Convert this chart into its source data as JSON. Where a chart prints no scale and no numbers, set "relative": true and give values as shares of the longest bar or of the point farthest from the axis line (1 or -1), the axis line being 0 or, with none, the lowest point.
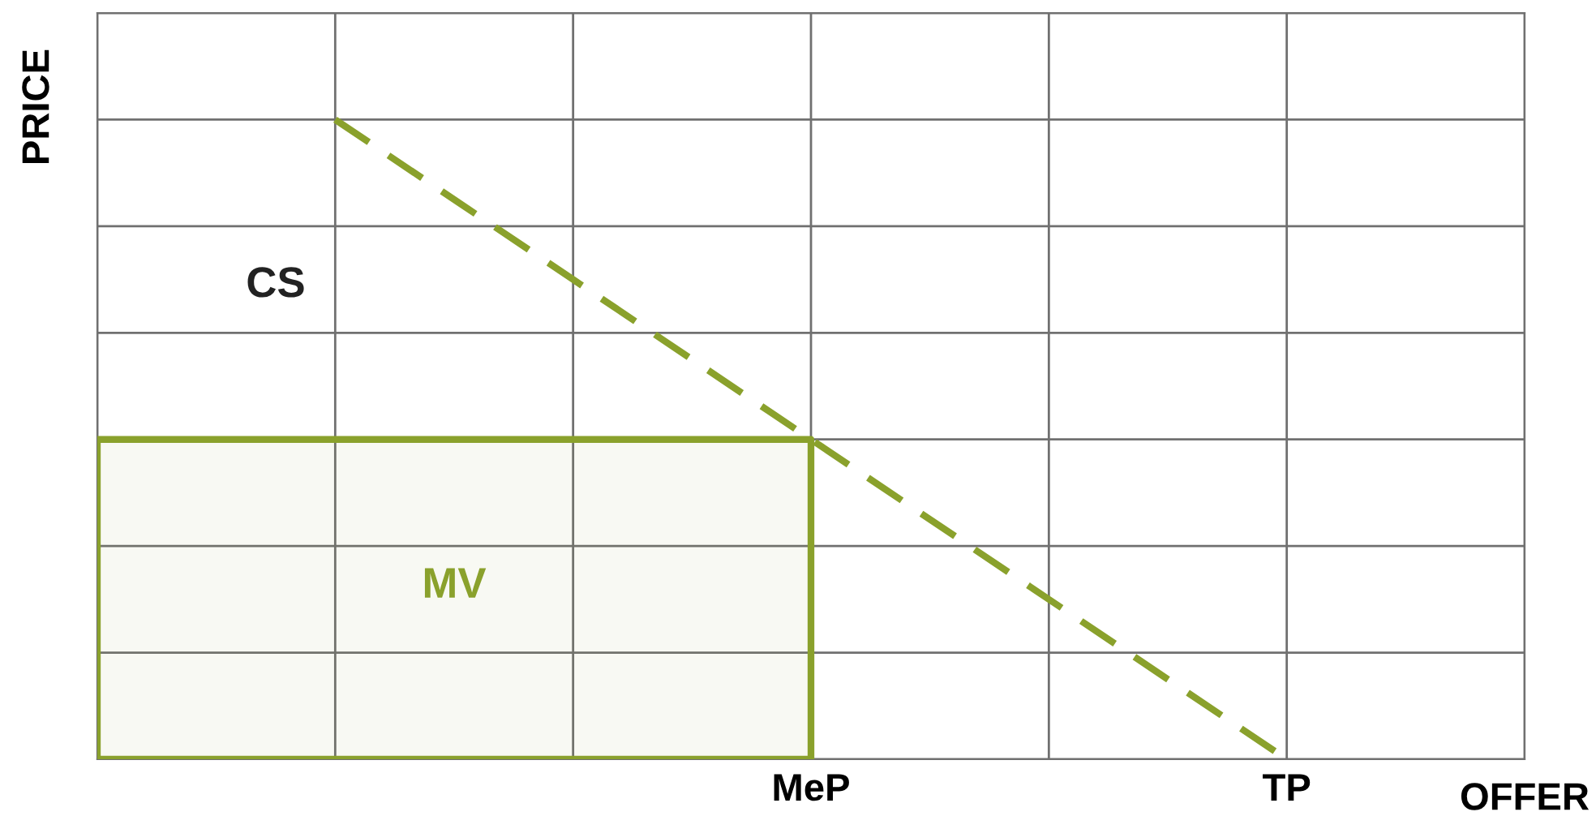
{
  "chart_data": {
    "type": "line",
    "relative": true,
    "xlabel": "OFFER",
    "ylabel": "PRICE",
    "categories": [
      null,
      null,
      null,
      "MeP",
      null,
      "TP",
      null
    ],
    "grid": true,
    "series": [
      {
        "values": [
          null,
          1,
          0.75,
          0.5,
          0.25,
          0,
          null
        ],
        "color": "#8aa12c",
        "line_style": "dashed"
      },
      {
        "type": "area",
        "values": [
          0.5,
          0.5,
          0.5,
          0.5,
          null,
          null,
          null
        ],
        "color": "#8aa12c"
      }
    ],
    "annotations": [
      "CS",
      "MV"
    ]
  }
}
